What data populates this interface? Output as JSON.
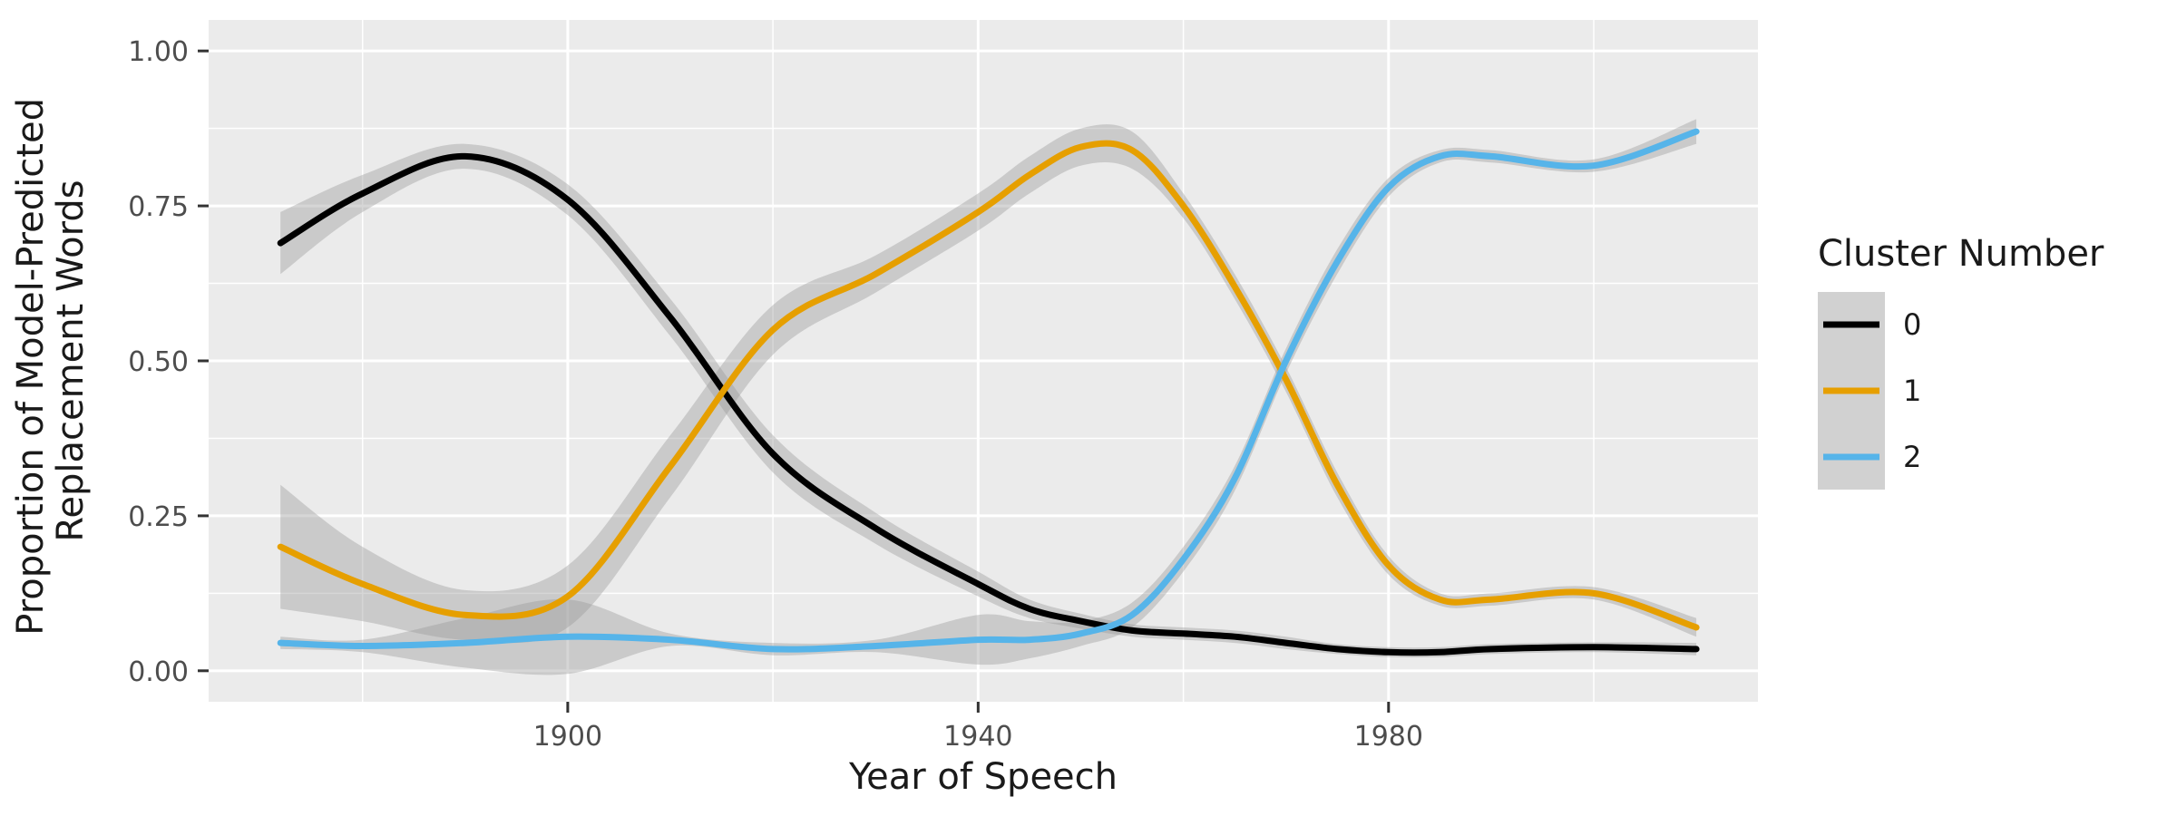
{
  "chart_data": {
    "type": "line",
    "xlabel": "Year of Speech",
    "ylabel_lines": [
      "Proportion of Model-Predicted",
      "Replacement Words"
    ],
    "xlim": [
      1865,
      2016
    ],
    "ylim": [
      -0.05,
      1.05
    ],
    "x_ticks": [
      1900,
      1940,
      1980
    ],
    "x_tick_labels": [
      "1900",
      "1940",
      "1980"
    ],
    "y_ticks": [
      0,
      0.25,
      0.5,
      0.75,
      1
    ],
    "y_tick_labels": [
      "0.00",
      "0.25",
      "0.50",
      "0.75",
      "1.00"
    ],
    "grid": true,
    "legend": {
      "title": "Cluster Number",
      "position": "right"
    },
    "x": [
      1872,
      1880,
      1890,
      1900,
      1910,
      1920,
      1930,
      1940,
      1945,
      1950,
      1955,
      1960,
      1965,
      1970,
      1975,
      1980,
      1985,
      1990,
      2000,
      2010
    ],
    "series": [
      {
        "name": "0",
        "color": "#000000",
        "values": [
          0.69,
          0.77,
          0.83,
          0.76,
          0.57,
          0.35,
          0.23,
          0.14,
          0.1,
          0.08,
          0.065,
          0.06,
          0.055,
          0.045,
          0.035,
          0.03,
          0.03,
          0.035,
          0.038,
          0.035
        ],
        "ci_width": [
          0.05,
          0.03,
          0.02,
          0.025,
          0.03,
          0.03,
          0.025,
          0.02,
          0.015,
          0.012,
          0.01,
          0.01,
          0.01,
          0.01,
          0.008,
          0.008,
          0.008,
          0.008,
          0.008,
          0.01
        ]
      },
      {
        "name": "1",
        "color": "#E69F00",
        "values": [
          0.2,
          0.14,
          0.09,
          0.12,
          0.33,
          0.55,
          0.64,
          0.74,
          0.8,
          0.845,
          0.84,
          0.75,
          0.62,
          0.47,
          0.3,
          0.17,
          0.115,
          0.115,
          0.125,
          0.07
        ],
        "ci_width": [
          0.1,
          0.06,
          0.04,
          0.05,
          0.05,
          0.04,
          0.03,
          0.03,
          0.03,
          0.03,
          0.03,
          0.02,
          0.02,
          0.02,
          0.02,
          0.015,
          0.01,
          0.01,
          0.01,
          0.015
        ]
      },
      {
        "name": "2",
        "color": "#56B4E9",
        "values": [
          0.045,
          0.04,
          0.045,
          0.055,
          0.05,
          0.035,
          0.04,
          0.05,
          0.05,
          0.06,
          0.09,
          0.18,
          0.31,
          0.5,
          0.66,
          0.78,
          0.83,
          0.83,
          0.815,
          0.87
        ],
        "ci_width": [
          0.01,
          0.01,
          0.04,
          0.06,
          0.01,
          0.01,
          0.01,
          0.04,
          0.03,
          0.02,
          0.02,
          0.02,
          0.02,
          0.02,
          0.02,
          0.015,
          0.01,
          0.01,
          0.01,
          0.02
        ]
      }
    ]
  }
}
